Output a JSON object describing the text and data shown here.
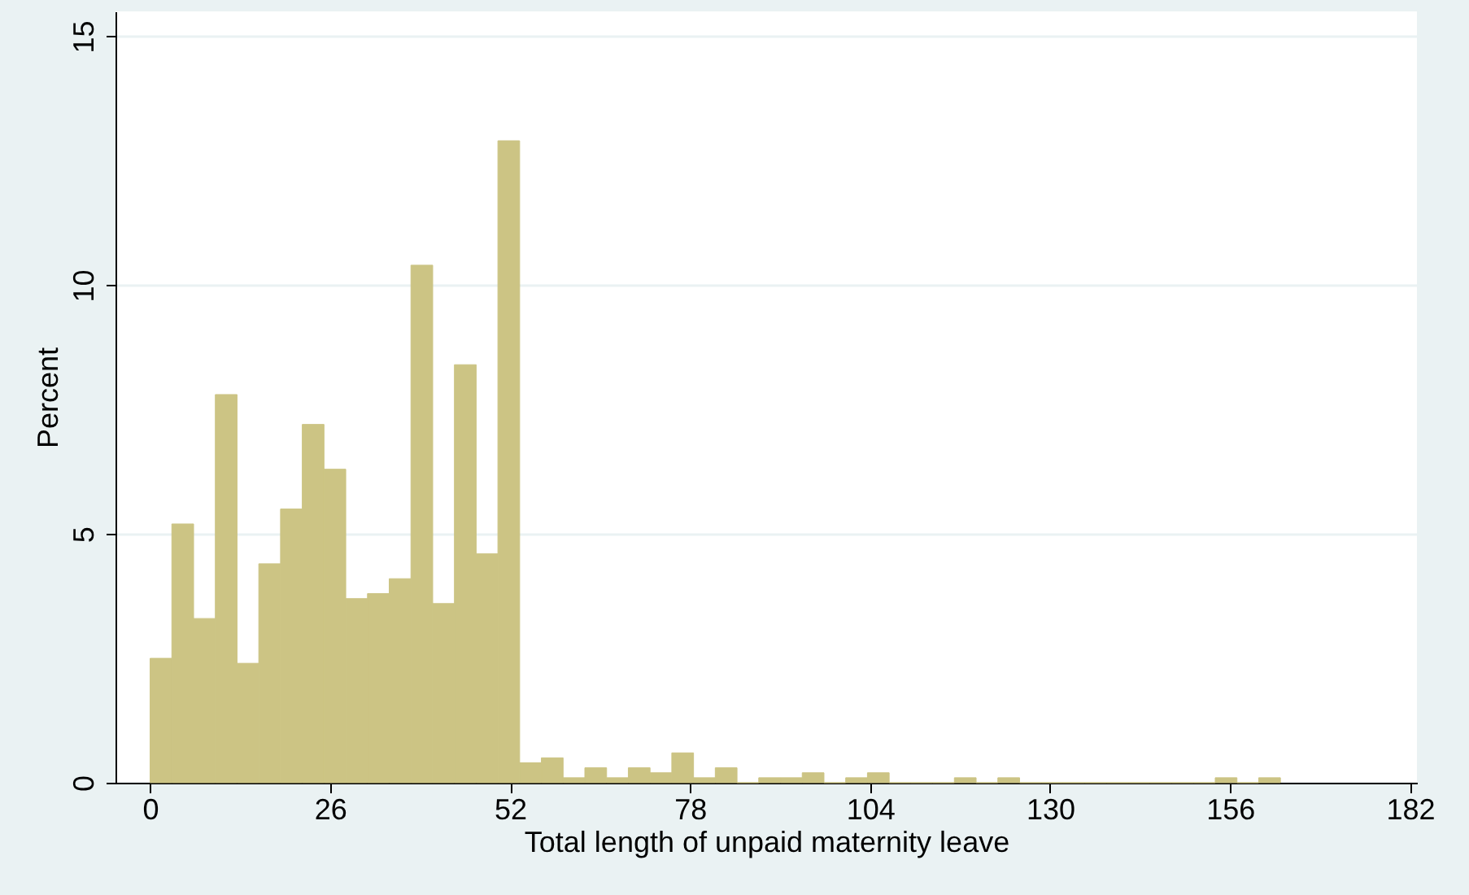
{
  "chart_data": {
    "type": "histogram",
    "xlabel": "Total length of unpaid maternity leave",
    "ylabel": "Percent",
    "bins": [
      0,
      3.14,
      6.28,
      9.42,
      12.56,
      15.7,
      18.84,
      21.98,
      25.12,
      28.26,
      31.4,
      34.54,
      37.68,
      40.82,
      43.96,
      47.1,
      50.24,
      53.38,
      56.52,
      59.66,
      62.8,
      65.94,
      69.08,
      72.22,
      75.36,
      78.5,
      81.64,
      84.78,
      87.92,
      91.06,
      94.2,
      97.34,
      100.48,
      103.62,
      106.76,
      109.9,
      113.04,
      116.18,
      119.32,
      122.46,
      125.6,
      128.74,
      131.88,
      135.02,
      138.16,
      141.3,
      144.44,
      147.58,
      150.72,
      153.86,
      157,
      160.14,
      163.28
    ],
    "values": [
      2.5,
      5.2,
      3.3,
      7.8,
      2.4,
      4.4,
      5.5,
      7.2,
      6.3,
      3.7,
      3.8,
      4.1,
      10.4,
      3.6,
      8.4,
      4.6,
      12.9,
      0.4,
      0.5,
      0.1,
      0.3,
      0.1,
      0.3,
      0.2,
      0.6,
      0.1,
      0.3,
      0,
      0.1,
      0.1,
      0.2,
      0,
      0.1,
      0.2,
      0,
      0,
      0,
      0.1,
      0,
      0.1,
      0,
      0,
      0,
      0,
      0,
      0,
      0,
      0,
      0,
      0.1,
      0,
      0.1
    ],
    "color": "#ccc484",
    "xlim": [
      -5,
      183
    ],
    "ylim": [
      0,
      15.5
    ],
    "xticks": [
      0,
      26,
      52,
      78,
      104,
      130,
      156,
      182
    ],
    "yticks": [
      0,
      5,
      10,
      15
    ],
    "grid": "y"
  }
}
